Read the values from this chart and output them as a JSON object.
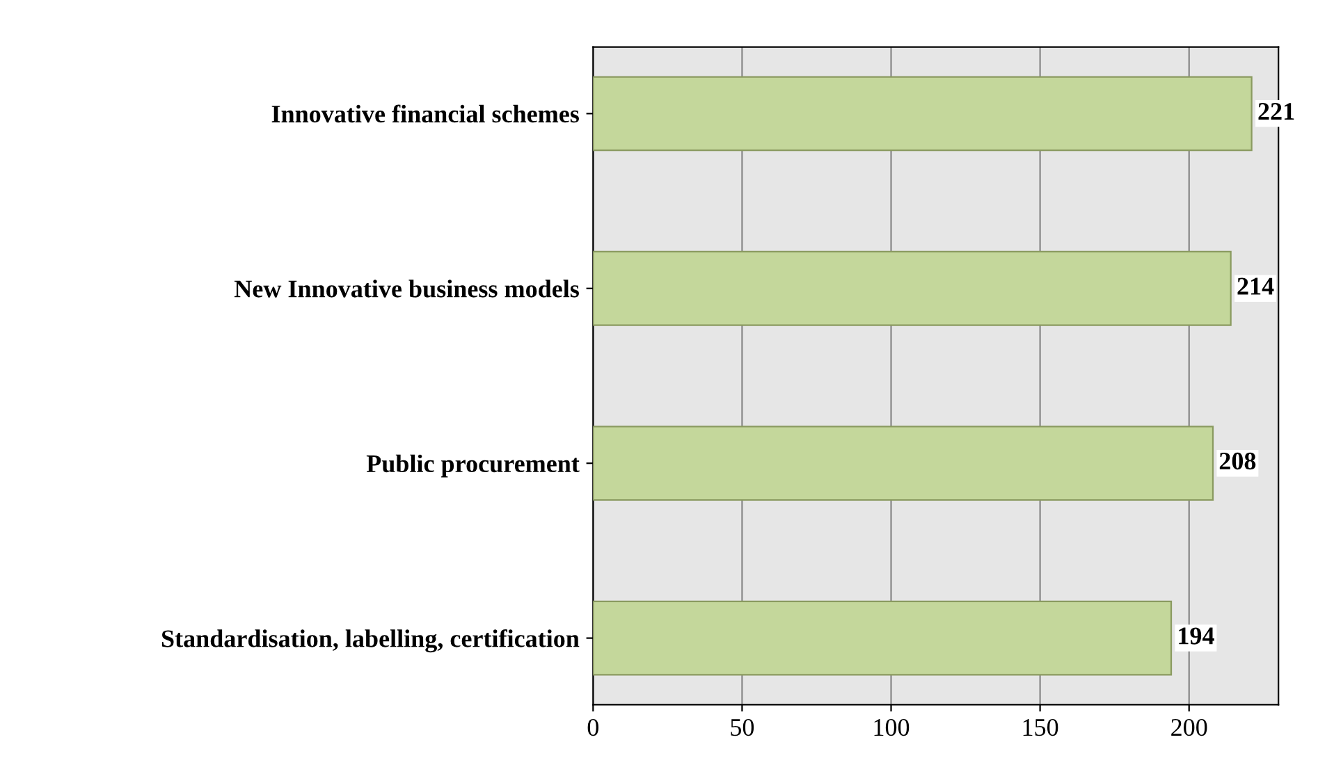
{
  "chart_data": {
    "type": "bar",
    "orientation": "horizontal",
    "categories": [
      "Innovative financial schemes",
      "New Innovative business models",
      "Public procurement",
      "Standardisation, labelling, certification"
    ],
    "values": [
      221,
      214,
      208,
      194
    ],
    "color": "#c4d79b",
    "xlim": [
      0,
      230
    ],
    "xticks": [
      0,
      50,
      100,
      150,
      200
    ],
    "grid": "x",
    "data_labels": true
  }
}
